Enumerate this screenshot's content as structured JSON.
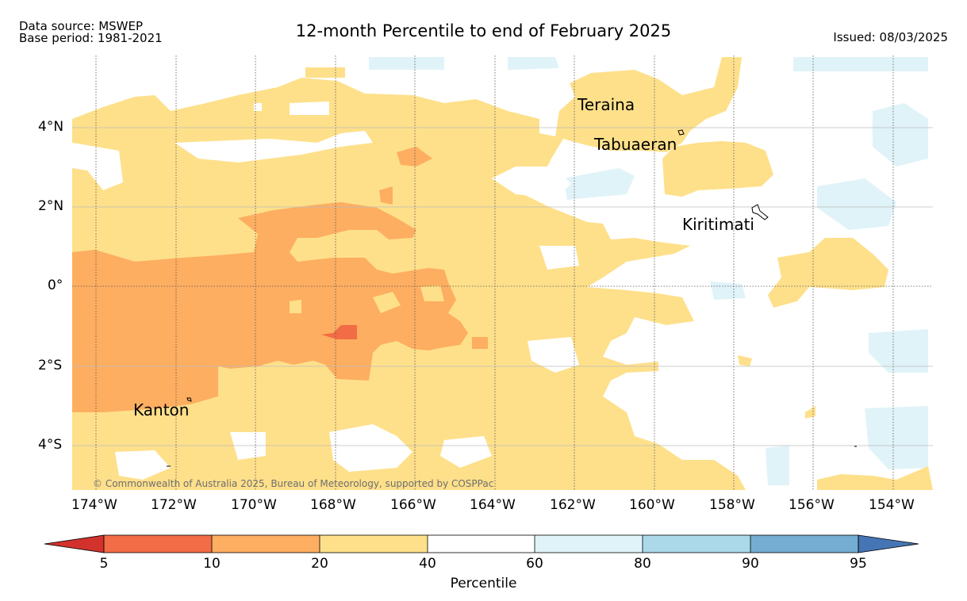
{
  "header": {
    "data_source": "Data source: MSWEP",
    "base_period": "Base period: 1981-2021",
    "title": "12-month Percentile to end of February 2025",
    "issued": "Issued: 08/03/2025"
  },
  "map": {
    "lon_labels": [
      "174°W",
      "172°W",
      "170°W",
      "168°W",
      "166°W",
      "164°W",
      "162°W",
      "160°W",
      "158°W",
      "156°W",
      "154°W"
    ],
    "lat_labels": [
      "4°N",
      "2°N",
      "0°",
      "2°S",
      "4°S"
    ],
    "places": {
      "teraina": "Teraina",
      "tabuaeran": "Tabuaeran",
      "kiritimati": "Kiritimati",
      "kanton": "Kanton"
    },
    "copyright": "© Commonwealth of Australia 2025, Bureau of Meteorology, supported by COSPPac"
  },
  "colorbar": {
    "label": "Percentile",
    "ticks": [
      "5",
      "10",
      "20",
      "40",
      "60",
      "80",
      "90",
      "95"
    ],
    "colors": [
      "#d3312c",
      "#f26c45",
      "#fdae61",
      "#fee08b",
      "#ffffff",
      "#e0f3f8",
      "#abd9e9",
      "#74add1",
      "#4575b4"
    ]
  },
  "colors": {
    "very_dry": "#f26c45",
    "dry": "#fdae61",
    "below": "#fee08b",
    "above": "#e0f3f8"
  }
}
